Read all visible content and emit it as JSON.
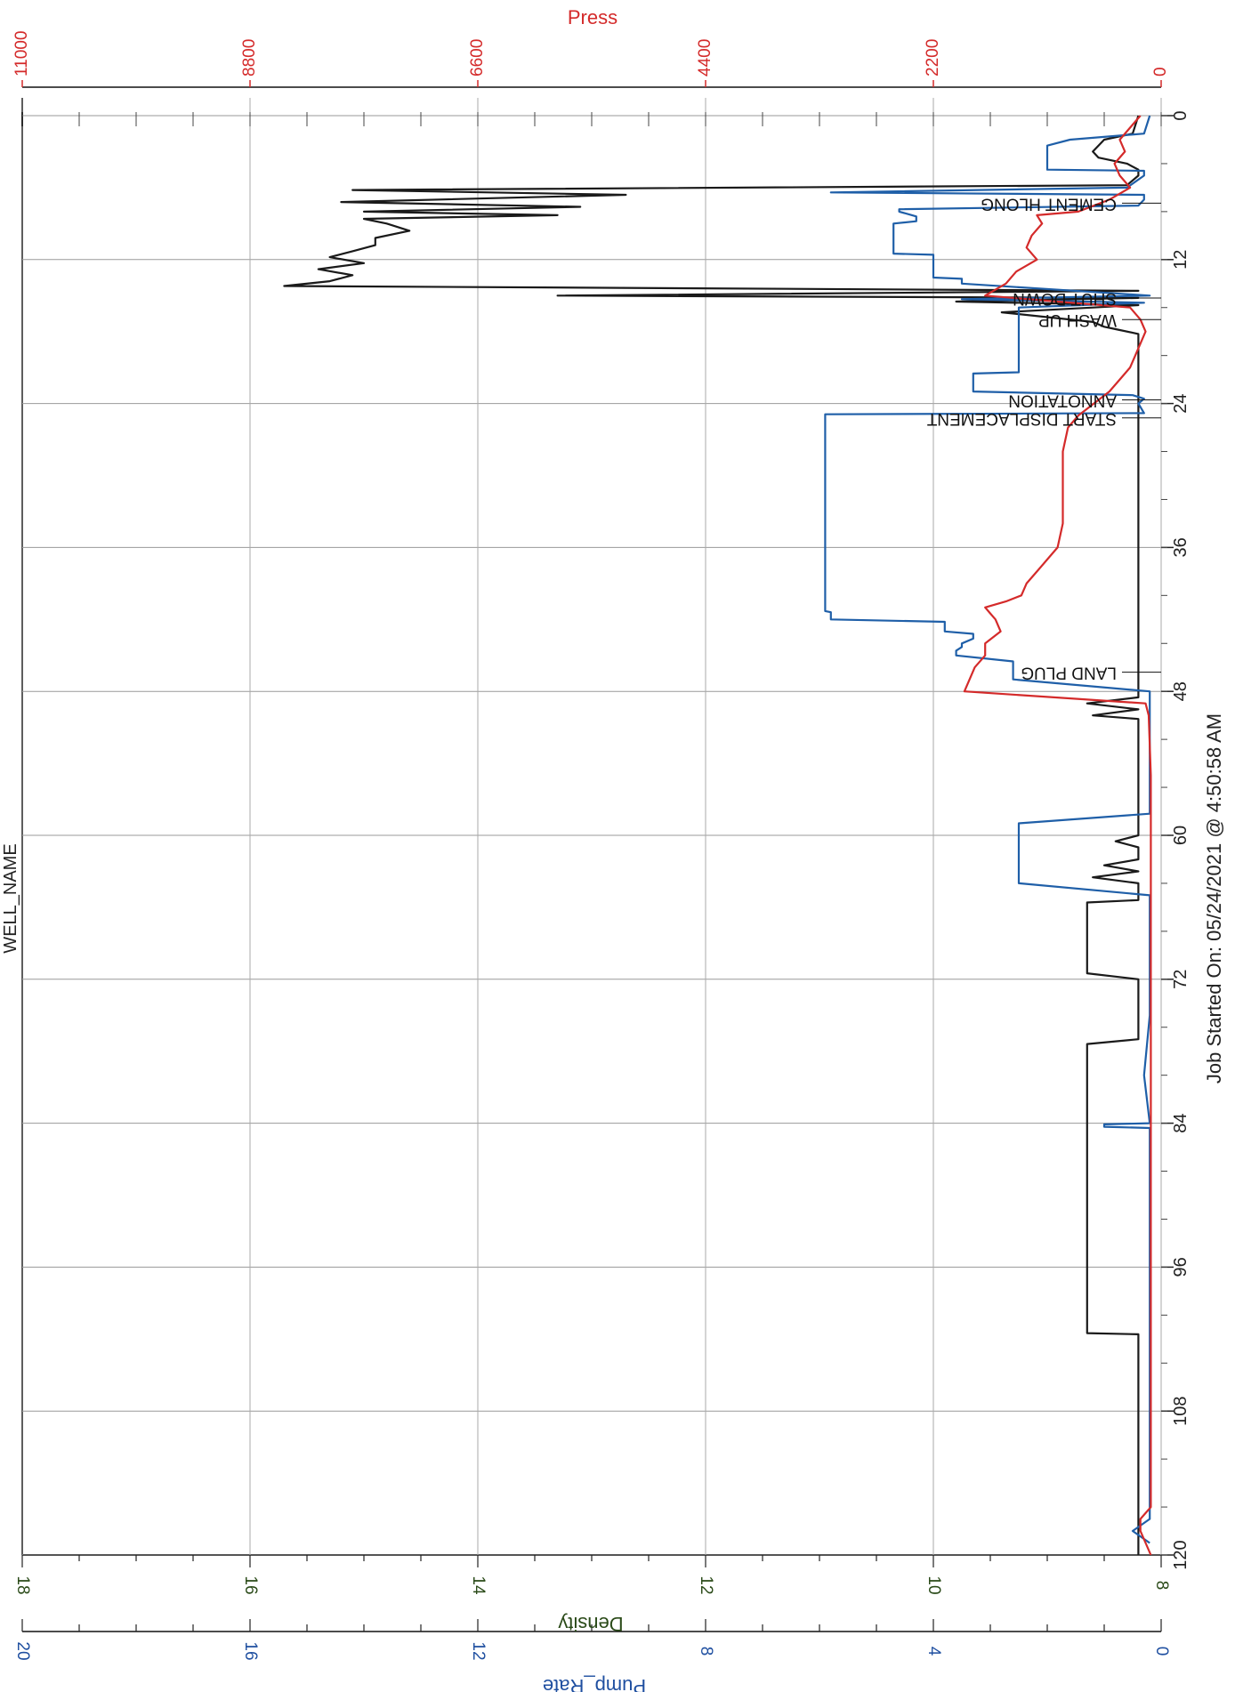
{
  "chart_data": {
    "type": "line",
    "title": "WELL_NAME",
    "x_axis": {
      "label": "Job Started On: 05/24/2021 @ 4:50:58 AM",
      "range": [
        0,
        120
      ],
      "ticks": [
        "0",
        "12",
        "24",
        "36",
        "48",
        "60",
        "72",
        "84",
        "96",
        "108",
        "120"
      ]
    },
    "axes": {
      "press": {
        "label": "Press",
        "range": [
          0,
          11000
        ],
        "ticks": [
          "0",
          "2200",
          "4400",
          "6600",
          "8800",
          "11000"
        ],
        "color": "#d42a2a"
      },
      "density": {
        "label": "Density",
        "range": [
          8,
          18
        ],
        "ticks": [
          "8",
          "10",
          "12",
          "14",
          "16",
          "18"
        ],
        "color": "#2a4a18"
      },
      "pump_rate": {
        "label": "Pump_Rate",
        "range": [
          0,
          20
        ],
        "ticks": [
          "0",
          "4",
          "8",
          "12",
          "16",
          "20"
        ],
        "color": "#1f4fa0"
      }
    },
    "grid": true,
    "series": [
      {
        "axis": "density",
        "color": "#1a1a1a",
        "x": [
          0,
          1.5,
          2,
          3,
          3.5,
          4,
          4.5,
          5,
          5.8,
          6.2,
          6.6,
          7.2,
          7.6,
          8.0,
          8.3,
          8.6,
          9.0,
          9.6,
          10.2,
          10.8,
          11.3,
          11.8,
          12.3,
          12.8,
          13.3,
          13.8,
          14.2,
          14.6,
          15.0,
          15.2,
          15.5,
          15.8,
          16.4,
          16.8,
          17.2,
          17.6,
          17.8,
          18.2,
          19.0,
          19.6,
          20.0,
          20.5,
          21.0,
          21.5,
          22.0,
          23.0,
          24.0,
          30,
          40,
          45,
          46,
          46.5,
          47,
          47.6,
          48,
          48.5,
          49.0,
          49.5,
          50.0,
          50.3,
          54,
          57,
          58,
          59,
          59.5,
          60,
          60.5,
          61,
          62,
          62.5,
          63,
          63.5,
          64,
          64.5,
          65.4,
          65.6,
          66,
          70,
          71.5,
          72.0,
          72.3,
          72.6,
          73.2,
          74,
          75,
          76.5,
          77.0,
          77.4,
          78,
          80,
          85,
          90,
          95,
          99,
          101.5,
          101.6,
          101.8,
          103,
          110,
          120
        ],
        "y": [
          8.2,
          8.25,
          8.5,
          8.6,
          8.55,
          8.3,
          8.2,
          8.2,
          8.3,
          15.1,
          12.7,
          15.2,
          13.1,
          15.0,
          13.3,
          15.0,
          14.8,
          14.6,
          14.9,
          14.9,
          15.1,
          15.3,
          15.0,
          15.4,
          15.1,
          15.3,
          15.7,
          8.2,
          13.3,
          8.2,
          9.8,
          8.2,
          9.4,
          9.0,
          8.6,
          8.5,
          8.4,
          8.2,
          8.2,
          8.2,
          8.2,
          8.2,
          8.2,
          8.2,
          8.2,
          8.2,
          8.2,
          8.2,
          8.2,
          8.2,
          8.2,
          8.2,
          8.2,
          8.2,
          8.2,
          8.2,
          8.65,
          8.2,
          8.6,
          8.2,
          8.2,
          8.2,
          8.2,
          8.2,
          8.2,
          8.2,
          8.4,
          8.2,
          8.2,
          8.5,
          8.2,
          8.6,
          8.2,
          8.2,
          8.2,
          8.65,
          8.65,
          8.65,
          8.65,
          8.2,
          8.2,
          8.2,
          8.2,
          8.2,
          8.2,
          8.2,
          8.2,
          8.65,
          8.65,
          8.65,
          8.65,
          8.65,
          8.65,
          8.65,
          8.65,
          8.2,
          8.2,
          8.2,
          8.2,
          8.2
        ]
      },
      {
        "axis": "pump_rate",
        "color": "#1f5fa8",
        "x": [
          0,
          1.5,
          2.0,
          2.5,
          3.5,
          4.5,
          4.6,
          5.0,
          6.0,
          6.4,
          6.6,
          7.0,
          7.5,
          7.8,
          8.0,
          8.4,
          8.8,
          9.0,
          10.0,
          11.5,
          11.6,
          12.0,
          13.5,
          13.6,
          14.0,
          15.0,
          15.3,
          15.6,
          16.0,
          17.8,
          18.0,
          21.4,
          21.5,
          22.0,
          22.3,
          22.6,
          23.0,
          23.3,
          23.6,
          24.0,
          24.8,
          24.9,
          25.3,
          41.3,
          41.4,
          42.0,
          42.2,
          43.0,
          43.2,
          43.6,
          44.0,
          44.3,
          44.6,
          45.0,
          45.5,
          45.8,
          46.5,
          47.0,
          48.0,
          58.0,
          58.2,
          59.0,
          61.0,
          62.0,
          63.8,
          64.0,
          65.0,
          70.0,
          75.0,
          80.0,
          84.0,
          84.1,
          84.3,
          84.4,
          90.0,
          95.0,
          103.0,
          110.0,
          117.0,
          118.0,
          119.0
        ],
        "y": [
          0.2,
          0.3,
          1.6,
          2.0,
          2.0,
          2.0,
          0.3,
          0.3,
          0.6,
          5.8,
          0.3,
          0.3,
          0.4,
          4.6,
          4.6,
          4.3,
          4.3,
          4.7,
          4.7,
          4.7,
          4.0,
          4.0,
          4.0,
          3.5,
          3.5,
          0.2,
          3.5,
          0.3,
          2.5,
          2.5,
          2.5,
          2.5,
          3.3,
          3.3,
          3.3,
          3.3,
          3.3,
          0.5,
          0.3,
          0.4,
          0.3,
          5.9,
          5.9,
          5.9,
          5.8,
          5.8,
          3.8,
          3.8,
          3.3,
          3.3,
          3.5,
          3.5,
          3.6,
          3.6,
          2.6,
          2.6,
          2.6,
          2.6,
          0.2,
          0.2,
          0.2,
          2.5,
          2.5,
          2.5,
          2.5,
          2.5,
          0.2,
          0.2,
          0.2,
          0.3,
          0.2,
          1.0,
          1.0,
          0.2,
          0.2,
          0.2,
          0.2,
          0.2,
          0.2,
          0.5,
          0.2
        ]
      },
      {
        "axis": "press",
        "color": "#d42a2a",
        "x": [
          0,
          1,
          2,
          3,
          4,
          5,
          6,
          7,
          8,
          8.3,
          9,
          10,
          11,
          12,
          13,
          14,
          15,
          16,
          17,
          18,
          19,
          20,
          21,
          22,
          23,
          24,
          25,
          26,
          28,
          30,
          32,
          34,
          36,
          37,
          38,
          39,
          40,
          40.5,
          41,
          41.5,
          42,
          43,
          44,
          45,
          46,
          47,
          48,
          49,
          50,
          55,
          60,
          65,
          70,
          75,
          80,
          90,
          100,
          110,
          116,
          117,
          117.5,
          118,
          120
        ],
        "y": [
          200,
          300,
          400,
          350,
          450,
          400,
          300,
          500,
          800,
          1200,
          1150,
          1250,
          1300,
          1200,
          1400,
          1500,
          1700,
          300,
          200,
          150,
          200,
          250,
          300,
          400,
          500,
          650,
          800,
          900,
          950,
          950,
          950,
          950,
          1000,
          1100,
          1200,
          1300,
          1350,
          1500,
          1700,
          1650,
          1600,
          1550,
          1700,
          1700,
          1800,
          1850,
          1900,
          150,
          120,
          100,
          100,
          100,
          100,
          100,
          100,
          100,
          100,
          100,
          100,
          200,
          200,
          200,
          100
        ]
      }
    ],
    "annotations": [
      {
        "text": "CEMENT HLONG",
        "x": 7.3
      },
      {
        "text": "SHUT DOWN",
        "x": 15.2
      },
      {
        "text": "WASH UP",
        "x": 17.0
      },
      {
        "text": "ANNOTATION",
        "x": 23.7
      },
      {
        "text": "START DISPLACEMENT",
        "x": 25.2
      },
      {
        "text": "LAND PLUG",
        "x": 46.4
      }
    ]
  }
}
